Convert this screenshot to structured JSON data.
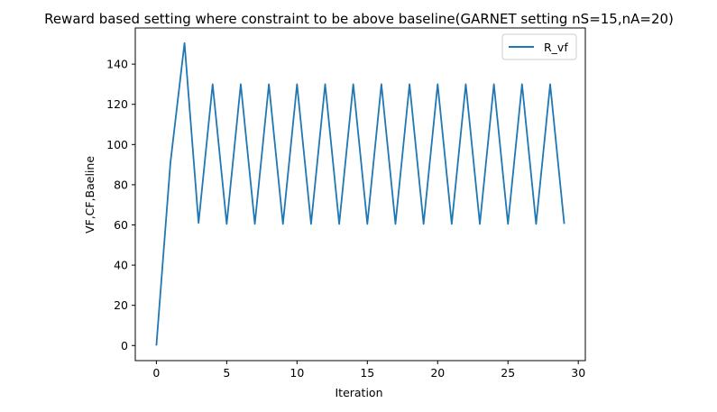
{
  "chart_data": {
    "type": "line",
    "title": "Reward based setting where constraint to be above baseline(GARNET setting nS=15,nA=20)",
    "xlabel": "Iteration",
    "ylabel": "VF,CF,Baeline",
    "xlim": [
      -1.5,
      30.5
    ],
    "ylim": [
      -7.5,
      158
    ],
    "xticks": [
      0,
      5,
      10,
      15,
      20,
      25,
      30
    ],
    "yticks": [
      0,
      20,
      40,
      60,
      80,
      100,
      120,
      140
    ],
    "grid": false,
    "legend_position": "top-right",
    "series": [
      {
        "name": "R_vf",
        "color": "#1f77b4",
        "x": [
          0,
          1,
          2,
          3,
          4,
          5,
          6,
          7,
          8,
          9,
          10,
          11,
          12,
          13,
          14,
          15,
          16,
          17,
          18,
          19,
          20,
          21,
          22,
          23,
          24,
          25,
          26,
          27,
          28,
          29
        ],
        "y": [
          0,
          91,
          150.5,
          61,
          130,
          60.5,
          130,
          60.5,
          130,
          60.5,
          130,
          60.5,
          130,
          60.5,
          130,
          60.5,
          130,
          60.5,
          130,
          60.5,
          130,
          60.5,
          130,
          60.5,
          130,
          60.5,
          130,
          60.5,
          130,
          60.5
        ]
      }
    ]
  }
}
